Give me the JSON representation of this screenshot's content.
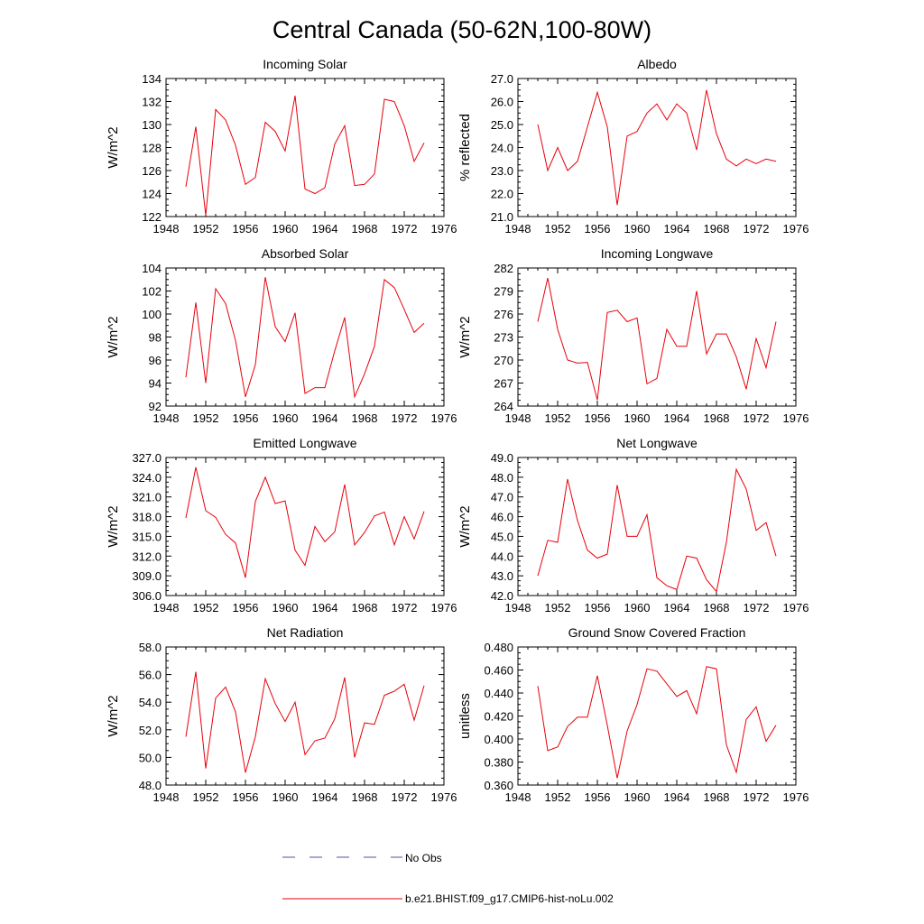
{
  "figure_title": "Central Canada (50-62N,100-80W)",
  "legend": {
    "no_obs_label": "No Obs",
    "no_obs_color": "#4a4fb0",
    "model_label": "b.e21.BHIST.f09_g17.CMIP6-hist-noLu.002",
    "model_color": "#e8000b"
  },
  "chart_data": [
    {
      "type": "line",
      "title": "Incoming Solar",
      "xlabel": "",
      "ylabel": "W/m^2",
      "xlim": [
        1948,
        1976
      ],
      "ylim": [
        122,
        134
      ],
      "x_ticks": [
        1948,
        1952,
        1956,
        1960,
        1964,
        1968,
        1972,
        1976
      ],
      "y_ticks": [
        "122",
        "124",
        "126",
        "128",
        "130",
        "132",
        "134"
      ],
      "grid": false,
      "series": [
        {
          "name": "b.e21.BHIST.f09_g17.CMIP6-hist-noLu.002",
          "color": "#e8000b",
          "x": [
            1950,
            1951,
            1952,
            1953,
            1954,
            1955,
            1956,
            1957,
            1958,
            1959,
            1960,
            1961,
            1962,
            1963,
            1964,
            1965,
            1966,
            1967,
            1968,
            1969,
            1970,
            1971,
            1972,
            1973,
            1974
          ],
          "y": [
            124.6,
            129.8,
            122.1,
            131.3,
            130.4,
            128.2,
            124.8,
            125.4,
            130.2,
            129.4,
            127.7,
            132.5,
            124.4,
            124.0,
            124.5,
            128.3,
            129.9,
            124.7,
            124.8,
            125.7,
            132.2,
            132.0,
            129.9,
            126.8,
            128.4
          ]
        }
      ]
    },
    {
      "type": "line",
      "title": "Albedo",
      "xlabel": "",
      "ylabel": "% reflected",
      "xlim": [
        1948,
        1976
      ],
      "ylim": [
        21.0,
        27.0
      ],
      "x_ticks": [
        1948,
        1952,
        1956,
        1960,
        1964,
        1968,
        1972,
        1976
      ],
      "y_ticks": [
        "21.0",
        "22.0",
        "23.0",
        "24.0",
        "25.0",
        "26.0",
        "27.0"
      ],
      "grid": false,
      "series": [
        {
          "name": "b.e21.BHIST.f09_g17.CMIP6-hist-noLu.002",
          "color": "#e8000b",
          "x": [
            1950,
            1951,
            1952,
            1953,
            1954,
            1955,
            1956,
            1957,
            1958,
            1959,
            1960,
            1961,
            1962,
            1963,
            1964,
            1965,
            1966,
            1967,
            1968,
            1969,
            1970,
            1971,
            1972,
            1973,
            1974
          ],
          "y": [
            25.0,
            23.0,
            24.0,
            23.0,
            23.4,
            24.9,
            26.4,
            24.9,
            21.5,
            24.5,
            24.7,
            25.5,
            25.9,
            25.2,
            25.9,
            25.5,
            23.9,
            26.5,
            24.6,
            23.5,
            23.2,
            23.5,
            23.3,
            23.5,
            23.4
          ]
        }
      ]
    },
    {
      "type": "line",
      "title": "Absorbed Solar",
      "xlabel": "",
      "ylabel": "W/m^2",
      "xlim": [
        1948,
        1976
      ],
      "ylim": [
        92,
        104
      ],
      "x_ticks": [
        1948,
        1952,
        1956,
        1960,
        1964,
        1968,
        1972,
        1976
      ],
      "y_ticks": [
        "92",
        "94",
        "96",
        "98",
        "100",
        "102",
        "104"
      ],
      "grid": false,
      "series": [
        {
          "name": "b.e21.BHIST.f09_g17.CMIP6-hist-noLu.002",
          "color": "#e8000b",
          "x": [
            1950,
            1951,
            1952,
            1953,
            1954,
            1955,
            1956,
            1957,
            1958,
            1959,
            1960,
            1961,
            1962,
            1963,
            1964,
            1965,
            1966,
            1967,
            1968,
            1969,
            1970,
            1971,
            1972,
            1973,
            1974
          ],
          "y": [
            94.5,
            101.0,
            94.0,
            102.2,
            100.9,
            97.7,
            92.8,
            95.6,
            103.2,
            98.9,
            97.6,
            100.1,
            93.1,
            93.6,
            93.6,
            96.8,
            99.7,
            92.8,
            94.8,
            97.2,
            103.0,
            102.3,
            100.4,
            98.4,
            99.2
          ]
        }
      ]
    },
    {
      "type": "line",
      "title": "Incoming Longwave",
      "xlabel": "",
      "ylabel": "W/m^2",
      "xlim": [
        1948,
        1976
      ],
      "ylim": [
        264,
        282
      ],
      "x_ticks": [
        1948,
        1952,
        1956,
        1960,
        1964,
        1968,
        1972,
        1976
      ],
      "y_ticks": [
        "264",
        "267",
        "270",
        "273",
        "276",
        "279",
        "282"
      ],
      "grid": false,
      "series": [
        {
          "name": "b.e21.BHIST.f09_g17.CMIP6-hist-noLu.002",
          "color": "#e8000b",
          "x": [
            1950,
            1951,
            1952,
            1953,
            1954,
            1955,
            1956,
            1957,
            1958,
            1959,
            1960,
            1961,
            1962,
            1963,
            1964,
            1965,
            1966,
            1967,
            1968,
            1969,
            1970,
            1971,
            1972,
            1973,
            1974
          ],
          "y": [
            275.0,
            280.7,
            274.0,
            270.0,
            269.6,
            269.7,
            264.8,
            276.2,
            276.5,
            275.0,
            275.5,
            266.9,
            267.6,
            274.0,
            271.8,
            271.8,
            279.0,
            270.8,
            273.4,
            273.4,
            270.4,
            266.2,
            272.8,
            269.0,
            275.0
          ]
        }
      ]
    },
    {
      "type": "line",
      "title": "Emitted Longwave",
      "xlabel": "",
      "ylabel": "W/m^2",
      "xlim": [
        1948,
        1976
      ],
      "ylim": [
        306.0,
        327.0
      ],
      "x_ticks": [
        1948,
        1952,
        1956,
        1960,
        1964,
        1968,
        1972,
        1976
      ],
      "y_ticks": [
        "306.0",
        "309.0",
        "312.0",
        "315.0",
        "318.0",
        "321.0",
        "324.0",
        "327.0"
      ],
      "grid": false,
      "series": [
        {
          "name": "b.e21.BHIST.f09_g17.CMIP6-hist-noLu.002",
          "color": "#e8000b",
          "x": [
            1950,
            1951,
            1952,
            1953,
            1954,
            1955,
            1956,
            1957,
            1958,
            1959,
            1960,
            1961,
            1962,
            1963,
            1964,
            1965,
            1966,
            1967,
            1968,
            1969,
            1970,
            1971,
            1972,
            1973,
            1974
          ],
          "y": [
            317.8,
            325.5,
            318.9,
            317.9,
            315.3,
            314.0,
            308.7,
            320.3,
            324.0,
            320.0,
            320.4,
            312.9,
            310.6,
            316.5,
            314.2,
            315.7,
            322.9,
            313.7,
            315.6,
            318.1,
            318.7,
            313.7,
            318.0,
            314.6,
            318.8
          ]
        }
      ]
    },
    {
      "type": "line",
      "title": "Net Longwave",
      "xlabel": "",
      "ylabel": "W/m^2",
      "xlim": [
        1948,
        1976
      ],
      "ylim": [
        42.0,
        49.0
      ],
      "x_ticks": [
        1948,
        1952,
        1956,
        1960,
        1964,
        1968,
        1972,
        1976
      ],
      "y_ticks": [
        "42.0",
        "43.0",
        "44.0",
        "45.0",
        "46.0",
        "47.0",
        "48.0",
        "49.0"
      ],
      "grid": false,
      "series": [
        {
          "name": "b.e21.BHIST.f09_g17.CMIP6-hist-noLu.002",
          "color": "#e8000b",
          "x": [
            1950,
            1951,
            1952,
            1953,
            1954,
            1955,
            1956,
            1957,
            1958,
            1959,
            1960,
            1961,
            1962,
            1963,
            1964,
            1965,
            1966,
            1967,
            1968,
            1969,
            1970,
            1971,
            1972,
            1973,
            1974
          ],
          "y": [
            43.0,
            44.8,
            44.7,
            47.9,
            45.8,
            44.3,
            43.9,
            44.1,
            47.6,
            45.0,
            45.0,
            46.1,
            42.9,
            42.5,
            42.3,
            44.0,
            43.9,
            42.8,
            42.2,
            44.7,
            48.4,
            47.4,
            45.3,
            45.7,
            44.0
          ]
        }
      ]
    },
    {
      "type": "line",
      "title": "Net Radiation",
      "xlabel": "",
      "ylabel": "W/m^2",
      "xlim": [
        1948,
        1976
      ],
      "ylim": [
        48.0,
        58.0
      ],
      "x_ticks": [
        1948,
        1952,
        1956,
        1960,
        1964,
        1968,
        1972,
        1976
      ],
      "y_ticks": [
        "48.0",
        "50.0",
        "52.0",
        "54.0",
        "56.0",
        "58.0"
      ],
      "grid": false,
      "series": [
        {
          "name": "b.e21.BHIST.f09_g17.CMIP6-hist-noLu.002",
          "color": "#e8000b",
          "x": [
            1950,
            1951,
            1952,
            1953,
            1954,
            1955,
            1956,
            1957,
            1958,
            1959,
            1960,
            1961,
            1962,
            1963,
            1964,
            1965,
            1966,
            1967,
            1968,
            1969,
            1970,
            1971,
            1972,
            1973,
            1974
          ],
          "y": [
            51.5,
            56.2,
            49.2,
            54.3,
            55.1,
            53.3,
            48.9,
            51.5,
            55.7,
            53.9,
            52.6,
            54.0,
            50.2,
            51.2,
            51.4,
            52.8,
            55.8,
            50.0,
            52.5,
            52.4,
            54.5,
            54.8,
            55.3,
            52.7,
            55.2
          ]
        }
      ]
    },
    {
      "type": "line",
      "title": "Ground Snow Covered Fraction",
      "xlabel": "",
      "ylabel": "unitless",
      "xlim": [
        1948,
        1976
      ],
      "ylim": [
        0.36,
        0.48
      ],
      "x_ticks": [
        1948,
        1952,
        1956,
        1960,
        1964,
        1968,
        1972,
        1976
      ],
      "y_ticks": [
        "0.360",
        "0.380",
        "0.400",
        "0.420",
        "0.440",
        "0.460",
        "0.480"
      ],
      "grid": false,
      "series": [
        {
          "name": "b.e21.BHIST.f09_g17.CMIP6-hist-noLu.002",
          "color": "#e8000b",
          "x": [
            1950,
            1951,
            1952,
            1953,
            1954,
            1955,
            1956,
            1957,
            1958,
            1959,
            1960,
            1961,
            1962,
            1963,
            1964,
            1965,
            1966,
            1967,
            1968,
            1969,
            1970,
            1971,
            1972,
            1973,
            1974
          ],
          "y": [
            0.446,
            0.39,
            0.393,
            0.411,
            0.419,
            0.419,
            0.455,
            0.412,
            0.366,
            0.407,
            0.43,
            0.461,
            0.459,
            0.448,
            0.437,
            0.442,
            0.422,
            0.463,
            0.461,
            0.395,
            0.371,
            0.417,
            0.428,
            0.398,
            0.412
          ]
        }
      ]
    }
  ]
}
